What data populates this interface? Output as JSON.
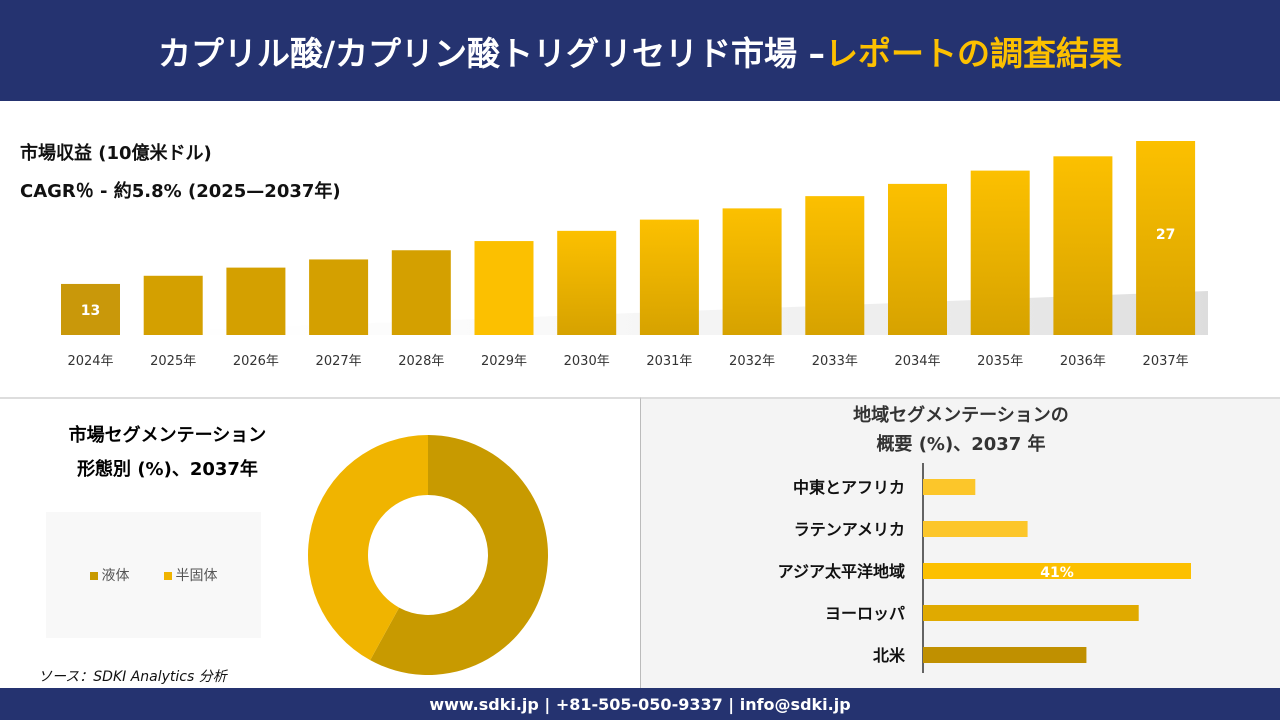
{
  "header": {
    "title_main": "カプリル酸/カプリン酸トリグリセリド市場 –",
    "title_accent": "レポートの調査結果"
  },
  "chart_data": [
    {
      "type": "bar",
      "title": "市場収益 (10億米ドル)",
      "subtitle": "CAGR％ - 約5.8% (2025—2037年)",
      "categories": [
        "2024年",
        "2025年",
        "2026年",
        "2027年",
        "2028年",
        "2029年",
        "2030年",
        "2031年",
        "2032年",
        "2033年",
        "2034年",
        "2035年",
        "2036年",
        "2037年"
      ],
      "values": [
        13,
        13.8,
        14.6,
        15.4,
        16.3,
        17.2,
        18.2,
        19.3,
        20.4,
        21.6,
        22.8,
        24.1,
        25.5,
        27
      ],
      "data_labels": {
        "0": "13",
        "13": "27"
      },
      "ylim": [
        8,
        27
      ],
      "grid": false,
      "colors": [
        "#c9980a",
        "#fcc000"
      ]
    },
    {
      "type": "pie",
      "title": "市場セグメンテーション",
      "subtitle": "形態別 (%)、2037年",
      "categories": [
        "液体",
        "半固体"
      ],
      "values": [
        58,
        42
      ],
      "colors": [
        "#c89a00",
        "#f0b400"
      ],
      "legend": "left",
      "donut": true
    },
    {
      "type": "bar",
      "orientation": "horizontal",
      "title": "地域セグメンテーションの",
      "subtitle": "概要 (%)、2037 年",
      "categories": [
        "中東とアフリカ",
        "ラテンアメリカ",
        "アジア太平洋地域",
        "ヨーロッパ",
        "北米"
      ],
      "values": [
        8,
        16,
        41,
        33,
        25
      ],
      "data_labels": {
        "2": "41%"
      },
      "colors": [
        "#fcc62a",
        "#fcc62a",
        "#fcc000",
        "#e0aa00",
        "#c09000"
      ]
    }
  ],
  "source": "ソース：SDKI Analytics 分析",
  "footer": "www.sdki.jp | +81-505-050-9337 | info@sdki.jp"
}
